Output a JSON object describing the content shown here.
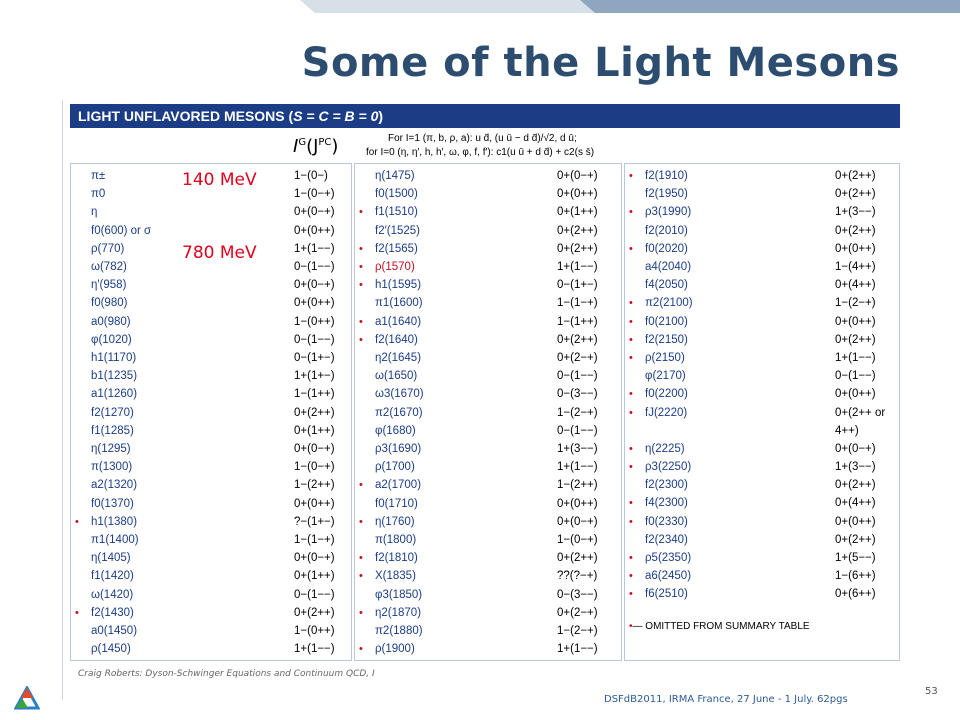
{
  "slide": {
    "title": "Some of the Light Mesons",
    "footer_credit": "Craig Roberts: Dyson-Schwinger Equations and Continuum QCD, I",
    "footer_event": "DSFdB2011, IRMA France, 27 June - 1 July. 62pgs",
    "slide_number": "53"
  },
  "table": {
    "header": "LIGHT UNFLAVORED MESONS (S = C = B = 0)",
    "header_main": "LIGHT UNFLAVORED MESONS (",
    "header_quant": "S = C = B = 0",
    "header_close": ")",
    "quantum_label_base": "I",
    "quantum_label_sup1": "G",
    "quantum_label_mid": "(J",
    "quantum_label_sup2": "PC",
    "quantum_label_end": ")",
    "legend_line1": "For I=1 (π, b, ρ, a):  u d̄, (u ū − d d̄)/√2, d ū;",
    "legend_line2": "for I=0 (η, η′, h, h′, ω, φ, f, f′):  c1(u ū + d d̄) + c2(s s̄)",
    "omitted_note": "— OMITTED FROM SUMMARY TABLE",
    "omitted_bullet": "•",
    "columns": [
      [
        {
          "b": "",
          "n": "π±",
          "q": "1−(0−)"
        },
        {
          "b": "",
          "n": "π0",
          "q": "1−(0−+)"
        },
        {
          "b": "",
          "n": "η",
          "q": "0+(0−+)"
        },
        {
          "b": "",
          "n": "f0(600) or σ",
          "q": "0+(0++)"
        },
        {
          "b": "",
          "n": "ρ(770)",
          "q": "1+(1−−)"
        },
        {
          "b": "",
          "n": "ω(782)",
          "q": "0−(1−−)"
        },
        {
          "b": "",
          "n": "η′(958)",
          "q": "0+(0−+)"
        },
        {
          "b": "",
          "n": "f0(980)",
          "q": "0+(0++)"
        },
        {
          "b": "",
          "n": "a0(980)",
          "q": "1−(0++)"
        },
        {
          "b": "",
          "n": "φ(1020)",
          "q": "0−(1−−)"
        },
        {
          "b": "",
          "n": "h1(1170)",
          "q": "0−(1+−)"
        },
        {
          "b": "",
          "n": "b1(1235)",
          "q": "1+(1+−)"
        },
        {
          "b": "",
          "n": "a1(1260)",
          "q": "1−(1++)"
        },
        {
          "b": "",
          "n": "f2(1270)",
          "q": "0+(2++)"
        },
        {
          "b": "",
          "n": "f1(1285)",
          "q": "0+(1++)"
        },
        {
          "b": "",
          "n": "η(1295)",
          "q": "0+(0−+)"
        },
        {
          "b": "",
          "n": "π(1300)",
          "q": "1−(0−+)"
        },
        {
          "b": "",
          "n": "a2(1320)",
          "q": "1−(2++)"
        },
        {
          "b": "",
          "n": "f0(1370)",
          "q": "0+(0++)"
        },
        {
          "b": "•",
          "n": "h1(1380)",
          "q": "?−(1+−)"
        },
        {
          "b": "",
          "n": "π1(1400)",
          "q": "1−(1−+)"
        },
        {
          "b": "",
          "n": "η(1405)",
          "q": "0+(0−+)"
        },
        {
          "b": "",
          "n": "f1(1420)",
          "q": "0+(1++)"
        },
        {
          "b": "",
          "n": "ω(1420)",
          "q": "0−(1−−)"
        },
        {
          "b": "•",
          "n": "f2(1430)",
          "q": "0+(2++)"
        },
        {
          "b": "",
          "n": "a0(1450)",
          "q": "1−(0++)"
        },
        {
          "b": "",
          "n": "ρ(1450)",
          "q": "1+(1−−)"
        }
      ],
      [
        {
          "b": "",
          "n": "η(1475)",
          "q": "0+(0−+)"
        },
        {
          "b": "",
          "n": "f0(1500)",
          "q": "0+(0++)"
        },
        {
          "b": "•",
          "n": "f1(1510)",
          "q": "0+(1++)"
        },
        {
          "b": "",
          "n": "f2′(1525)",
          "q": "0+(2++)"
        },
        {
          "b": "•",
          "n": "f2(1565)",
          "q": "0+(2++)"
        },
        {
          "b": "•",
          "n": "ρ(1570)",
          "q": "1+(1−−)",
          "red": true
        },
        {
          "b": "•",
          "n": "h1(1595)",
          "q": "0−(1+−)"
        },
        {
          "b": "",
          "n": "π1(1600)",
          "q": "1−(1−+)"
        },
        {
          "b": "•",
          "n": "a1(1640)",
          "q": "1−(1++)"
        },
        {
          "b": "•",
          "n": "f2(1640)",
          "q": "0+(2++)"
        },
        {
          "b": "",
          "n": "η2(1645)",
          "q": "0+(2−+)"
        },
        {
          "b": "",
          "n": "ω(1650)",
          "q": "0−(1−−)"
        },
        {
          "b": "",
          "n": "ω3(1670)",
          "q": "0−(3−−)"
        },
        {
          "b": "",
          "n": "π2(1670)",
          "q": "1−(2−+)"
        },
        {
          "b": "",
          "n": "φ(1680)",
          "q": "0−(1−−)"
        },
        {
          "b": "",
          "n": "ρ3(1690)",
          "q": "1+(3−−)"
        },
        {
          "b": "",
          "n": "ρ(1700)",
          "q": "1+(1−−)"
        },
        {
          "b": "•",
          "n": "a2(1700)",
          "q": "1−(2++)"
        },
        {
          "b": "",
          "n": "f0(1710)",
          "q": "0+(0++)"
        },
        {
          "b": "•",
          "n": "η(1760)",
          "q": "0+(0−+)"
        },
        {
          "b": "",
          "n": "π(1800)",
          "q": "1−(0−+)"
        },
        {
          "b": "•",
          "n": "f2(1810)",
          "q": "0+(2++)"
        },
        {
          "b": "•",
          "n": "X(1835)",
          "q": "??(?−+)"
        },
        {
          "b": "",
          "n": "φ3(1850)",
          "q": "0−(3−−)"
        },
        {
          "b": "•",
          "n": "η2(1870)",
          "q": "0+(2−+)"
        },
        {
          "b": "",
          "n": "π2(1880)",
          "q": "1−(2−+)"
        },
        {
          "b": "•",
          "n": "ρ(1900)",
          "q": "1+(1−−)"
        }
      ],
      [
        {
          "b": "•",
          "n": "f2(1910)",
          "q": "0+(2++)"
        },
        {
          "b": "",
          "n": "f2(1950)",
          "q": "0+(2++)"
        },
        {
          "b": "•",
          "n": "ρ3(1990)",
          "q": "1+(3−−)"
        },
        {
          "b": "",
          "n": "f2(2010)",
          "q": "0+(2++)"
        },
        {
          "b": "•",
          "n": "f0(2020)",
          "q": "0+(0++)"
        },
        {
          "b": "",
          "n": "a4(2040)",
          "q": "1−(4++)"
        },
        {
          "b": "",
          "n": "f4(2050)",
          "q": "0+(4++)"
        },
        {
          "b": "•",
          "n": "π2(2100)",
          "q": "1−(2−+)"
        },
        {
          "b": "•",
          "n": "f0(2100)",
          "q": "0+(0++)"
        },
        {
          "b": "•",
          "n": "f2(2150)",
          "q": "0+(2++)"
        },
        {
          "b": "•",
          "n": "ρ(2150)",
          "q": "1+(1−−)"
        },
        {
          "b": "",
          "n": "φ(2170)",
          "q": "0−(1−−)"
        },
        {
          "b": "•",
          "n": "f0(2200)",
          "q": "0+(0++)"
        },
        {
          "b": "•",
          "n": "fJ(2220)",
          "q": "0+(2++ or",
          "q2": "4++)"
        },
        {
          "b": "•",
          "n": "η(2225)",
          "q": "0+(0−+)"
        },
        {
          "b": "•",
          "n": "ρ3(2250)",
          "q": "1+(3−−)"
        },
        {
          "b": "",
          "n": "f2(2300)",
          "q": "0+(2++)"
        },
        {
          "b": "•",
          "n": "f4(2300)",
          "q": "0+(4++)"
        },
        {
          "b": "•",
          "n": "f0(2330)",
          "q": "0+(0++)"
        },
        {
          "b": "",
          "n": "f2(2340)",
          "q": "0+(2++)"
        },
        {
          "b": "•",
          "n": "ρ5(2350)",
          "q": "1+(5−−)"
        },
        {
          "b": "•",
          "n": "a6(2450)",
          "q": "1−(6++)"
        },
        {
          "b": "•",
          "n": "f6(2510)",
          "q": "0+(6++)"
        }
      ]
    ]
  },
  "annotations": {
    "pion_mass": "140 MeV",
    "rho_mass": "780 MeV",
    "color": "#e0001b"
  },
  "colors": {
    "title": "#2c4d6f",
    "header_band": "#1b3d86",
    "particle_text": "#1b3d86",
    "bullet": "#c01020"
  }
}
